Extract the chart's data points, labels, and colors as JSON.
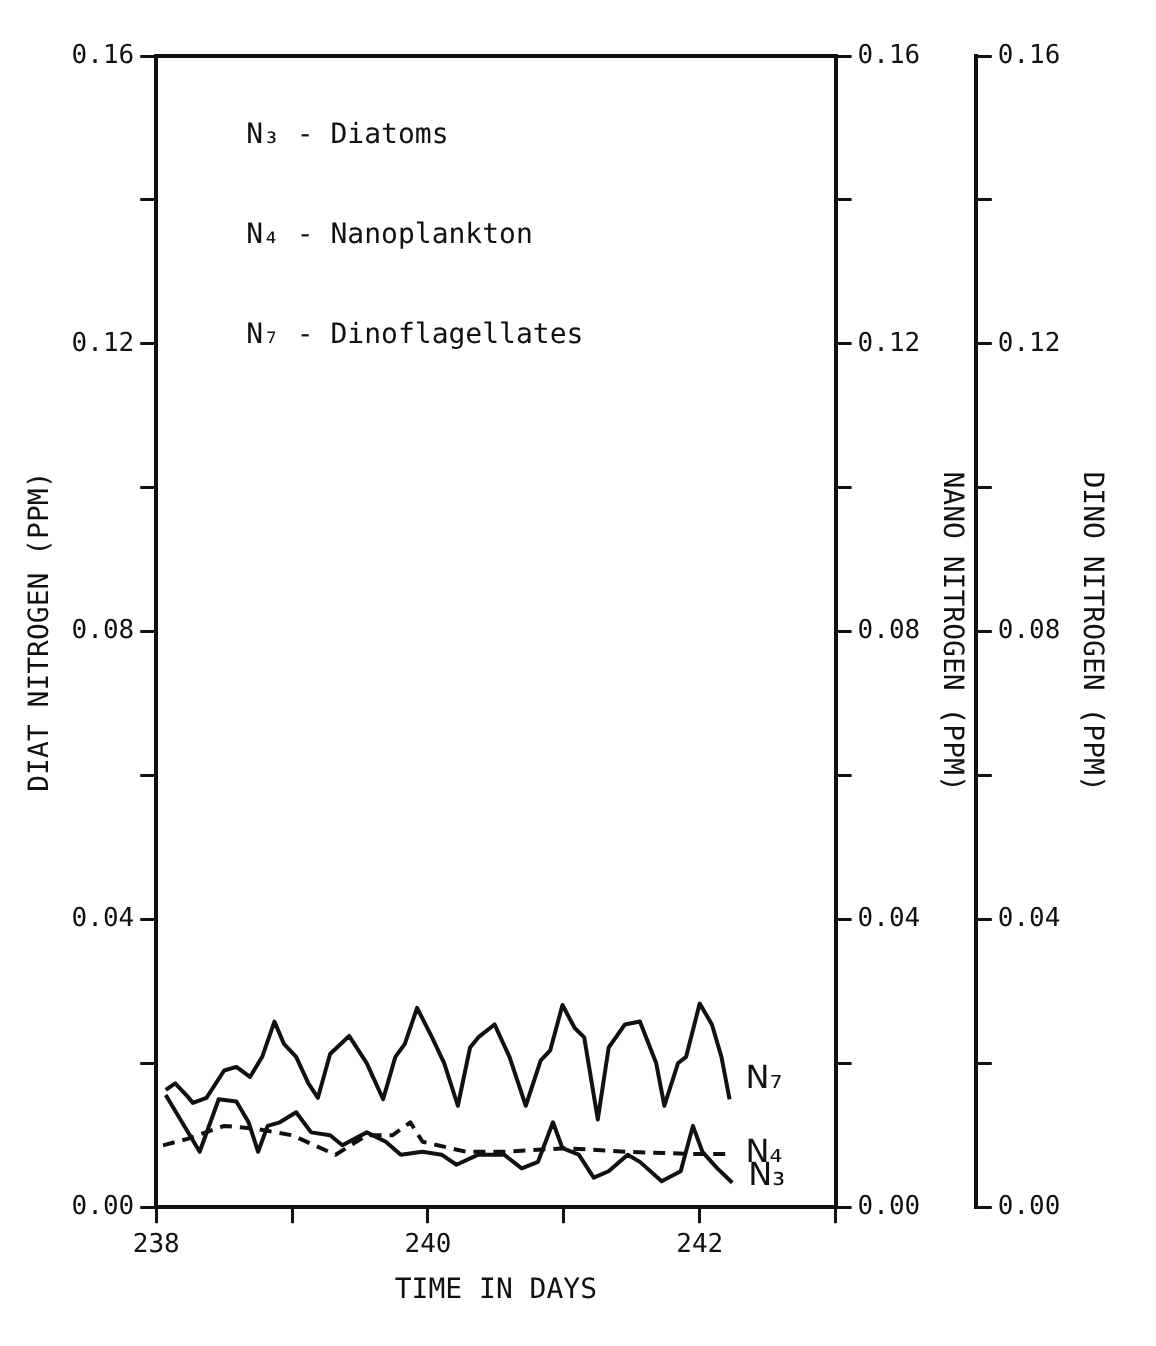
{
  "chart_data": {
    "type": "line",
    "xlabel": "TIME IN DAYS",
    "ylabel": "DIAT NITROGEN (PPM)",
    "y2label": "NANO NITROGEN (PPM)",
    "y3label": "DINO NITROGEN (PPM)",
    "xlim": [
      238,
      243
    ],
    "xticks": [
      238,
      {
        "value": 239,
        "label": null
      },
      240,
      {
        "value": 241,
        "label": null
      },
      242,
      {
        "value": 243,
        "label": null
      }
    ],
    "ylim": [
      0,
      0.16
    ],
    "yticks": [
      {
        "value": 0,
        "label": "0.00"
      },
      {
        "value": 0.02,
        "label": null
      },
      {
        "value": 0.04,
        "label": "0.04"
      },
      {
        "value": 0.06,
        "label": null
      },
      {
        "value": 0.08,
        "label": "0.08"
      },
      {
        "value": 0.1,
        "label": null
      },
      {
        "value": 0.12,
        "label": "0.12"
      },
      {
        "value": 0.14,
        "label": null
      },
      {
        "value": 0.16,
        "label": "0.16"
      }
    ],
    "y2lim": [
      0,
      0.16
    ],
    "y2ticks": [
      {
        "value": 0,
        "label": "0.00"
      },
      {
        "value": 0.02,
        "label": null
      },
      {
        "value": 0.04,
        "label": "0.04"
      },
      {
        "value": 0.06,
        "label": null
      },
      {
        "value": 0.08,
        "label": "0.08"
      },
      {
        "value": 0.1,
        "label": null
      },
      {
        "value": 0.12,
        "label": "0.12"
      },
      {
        "value": 0.14,
        "label": null
      },
      {
        "value": 0.16,
        "label": "0.16"
      }
    ],
    "y3lim": [
      0,
      0.16
    ],
    "y3ticks": [
      {
        "value": 0,
        "label": "0.00"
      },
      {
        "value": 0.02,
        "label": null
      },
      {
        "value": 0.04,
        "label": "0.04"
      },
      {
        "value": 0.06,
        "label": null
      },
      {
        "value": 0.08,
        "label": "0.08"
      },
      {
        "value": 0.1,
        "label": null
      },
      {
        "value": 0.12,
        "label": "0.12"
      },
      {
        "value": 0.14,
        "label": null
      },
      {
        "value": 0.16,
        "label": "0.16"
      }
    ],
    "grid": false,
    "legend": false,
    "marker": "none",
    "annotations": [
      "N₃ - Diatoms",
      "N₄ - Nanoplankton",
      "N₇ - Dinoflagellates"
    ],
    "series": [
      {
        "name": "N₇",
        "color": "#111111",
        "axis": "y3",
        "line_style": "solid",
        "x": [
          238.07,
          238.14,
          238.23,
          238.27,
          238.37,
          238.5,
          238.59,
          238.69,
          238.78,
          238.87,
          238.94,
          239.03,
          239.12,
          239.19,
          239.28,
          239.42,
          239.55,
          239.67,
          239.76,
          239.83,
          239.92,
          240.03,
          240.12,
          240.22,
          240.31,
          240.37,
          240.49,
          240.6,
          240.72,
          240.83,
          240.9,
          240.99,
          241.08,
          241.15,
          241.25,
          241.33,
          241.45,
          241.56,
          241.68,
          241.74,
          241.84,
          241.9,
          242.0,
          242.09,
          242.16,
          242.22
        ],
        "values": [
          0.0163,
          0.0172,
          0.0154,
          0.0145,
          0.0152,
          0.019,
          0.0195,
          0.0181,
          0.0209,
          0.0258,
          0.0227,
          0.0209,
          0.0172,
          0.0152,
          0.0213,
          0.0238,
          0.02,
          0.015,
          0.0209,
          0.0227,
          0.0277,
          0.0236,
          0.02,
          0.0141,
          0.0222,
          0.0236,
          0.0254,
          0.0209,
          0.0141,
          0.0204,
          0.0218,
          0.0281,
          0.0249,
          0.0236,
          0.0122,
          0.0222,
          0.0254,
          0.0258,
          0.02,
          0.0141,
          0.02,
          0.0209,
          0.0283,
          0.0254,
          0.0209,
          0.015
        ]
      },
      {
        "name": "N₄",
        "color": "#111111",
        "axis": "y2",
        "line_style": "dashed",
        "x": [
          238.05,
          238.23,
          238.5,
          238.73,
          239.0,
          239.32,
          239.55,
          239.74,
          239.87,
          239.96,
          240.28,
          240.56,
          241.01,
          241.47,
          241.93,
          242.22
        ],
        "values": [
          0.0086,
          0.0095,
          0.0113,
          0.0109,
          0.01,
          0.0073,
          0.01,
          0.01,
          0.0118,
          0.0091,
          0.0077,
          0.0077,
          0.0082,
          0.0077,
          0.0074,
          0.0074
        ]
      },
      {
        "name": "N₃",
        "color": "#111111",
        "axis": "y",
        "line_style": "solid",
        "x": [
          238.07,
          238.32,
          238.46,
          238.59,
          238.68,
          238.75,
          238.82,
          238.91,
          239.03,
          239.14,
          239.28,
          239.37,
          239.55,
          239.69,
          239.8,
          239.96,
          240.1,
          240.21,
          240.37,
          240.56,
          240.69,
          240.81,
          240.92,
          240.99,
          241.11,
          241.22,
          241.33,
          241.47,
          241.56,
          241.72,
          241.86,
          241.95,
          242.02,
          242.13,
          242.24
        ],
        "values": [
          0.0156,
          0.0077,
          0.015,
          0.0147,
          0.0118,
          0.0077,
          0.0113,
          0.0118,
          0.0132,
          0.0104,
          0.01,
          0.0086,
          0.0104,
          0.0091,
          0.0073,
          0.0077,
          0.0073,
          0.0059,
          0.0073,
          0.0073,
          0.0054,
          0.0063,
          0.0118,
          0.0082,
          0.0073,
          0.0041,
          0.005,
          0.0073,
          0.0063,
          0.0036,
          0.005,
          0.0113,
          0.0077,
          0.0054,
          0.0034
        ]
      }
    ]
  }
}
